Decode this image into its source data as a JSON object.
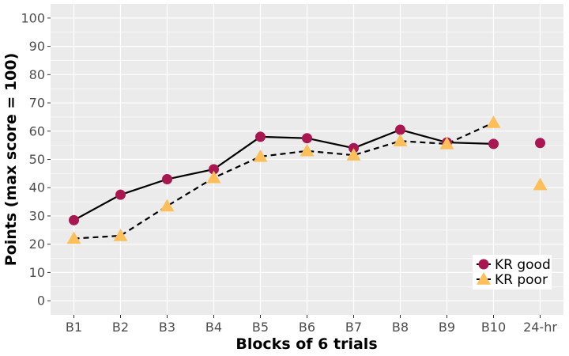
{
  "chart_data": {
    "type": "line",
    "xlabel": "Blocks of 6 trials",
    "ylabel": "Points (max score = 100)",
    "categories": [
      "B1",
      "B2",
      "B3",
      "B4",
      "B5",
      "B6",
      "B7",
      "B8",
      "B9",
      "B10",
      "24-hr"
    ],
    "ylim": [
      -5,
      105
    ],
    "yticks": [
      0,
      10,
      20,
      30,
      40,
      50,
      60,
      70,
      80,
      90,
      100
    ],
    "grid": true,
    "legend_position": "bottom-right",
    "series": [
      {
        "name": "KR good",
        "marker": "circle",
        "line_style": "solid",
        "color": "#A8174F",
        "connected_count": 10,
        "values": [
          28.5,
          37.5,
          43,
          46.5,
          58,
          57.5,
          54,
          60.5,
          56,
          55.5,
          55.8
        ]
      },
      {
        "name": "KR poor",
        "marker": "triangle",
        "line_style": "dashed",
        "color": "#FDBF5A",
        "connected_count": 10,
        "values": [
          22,
          23,
          33.5,
          43.5,
          51,
          53,
          51.5,
          56.5,
          55.5,
          63,
          41
        ]
      }
    ],
    "colors": {
      "panel_background": "#EBEBEB",
      "grid": "#FFFFFF",
      "line": "#000000"
    }
  }
}
